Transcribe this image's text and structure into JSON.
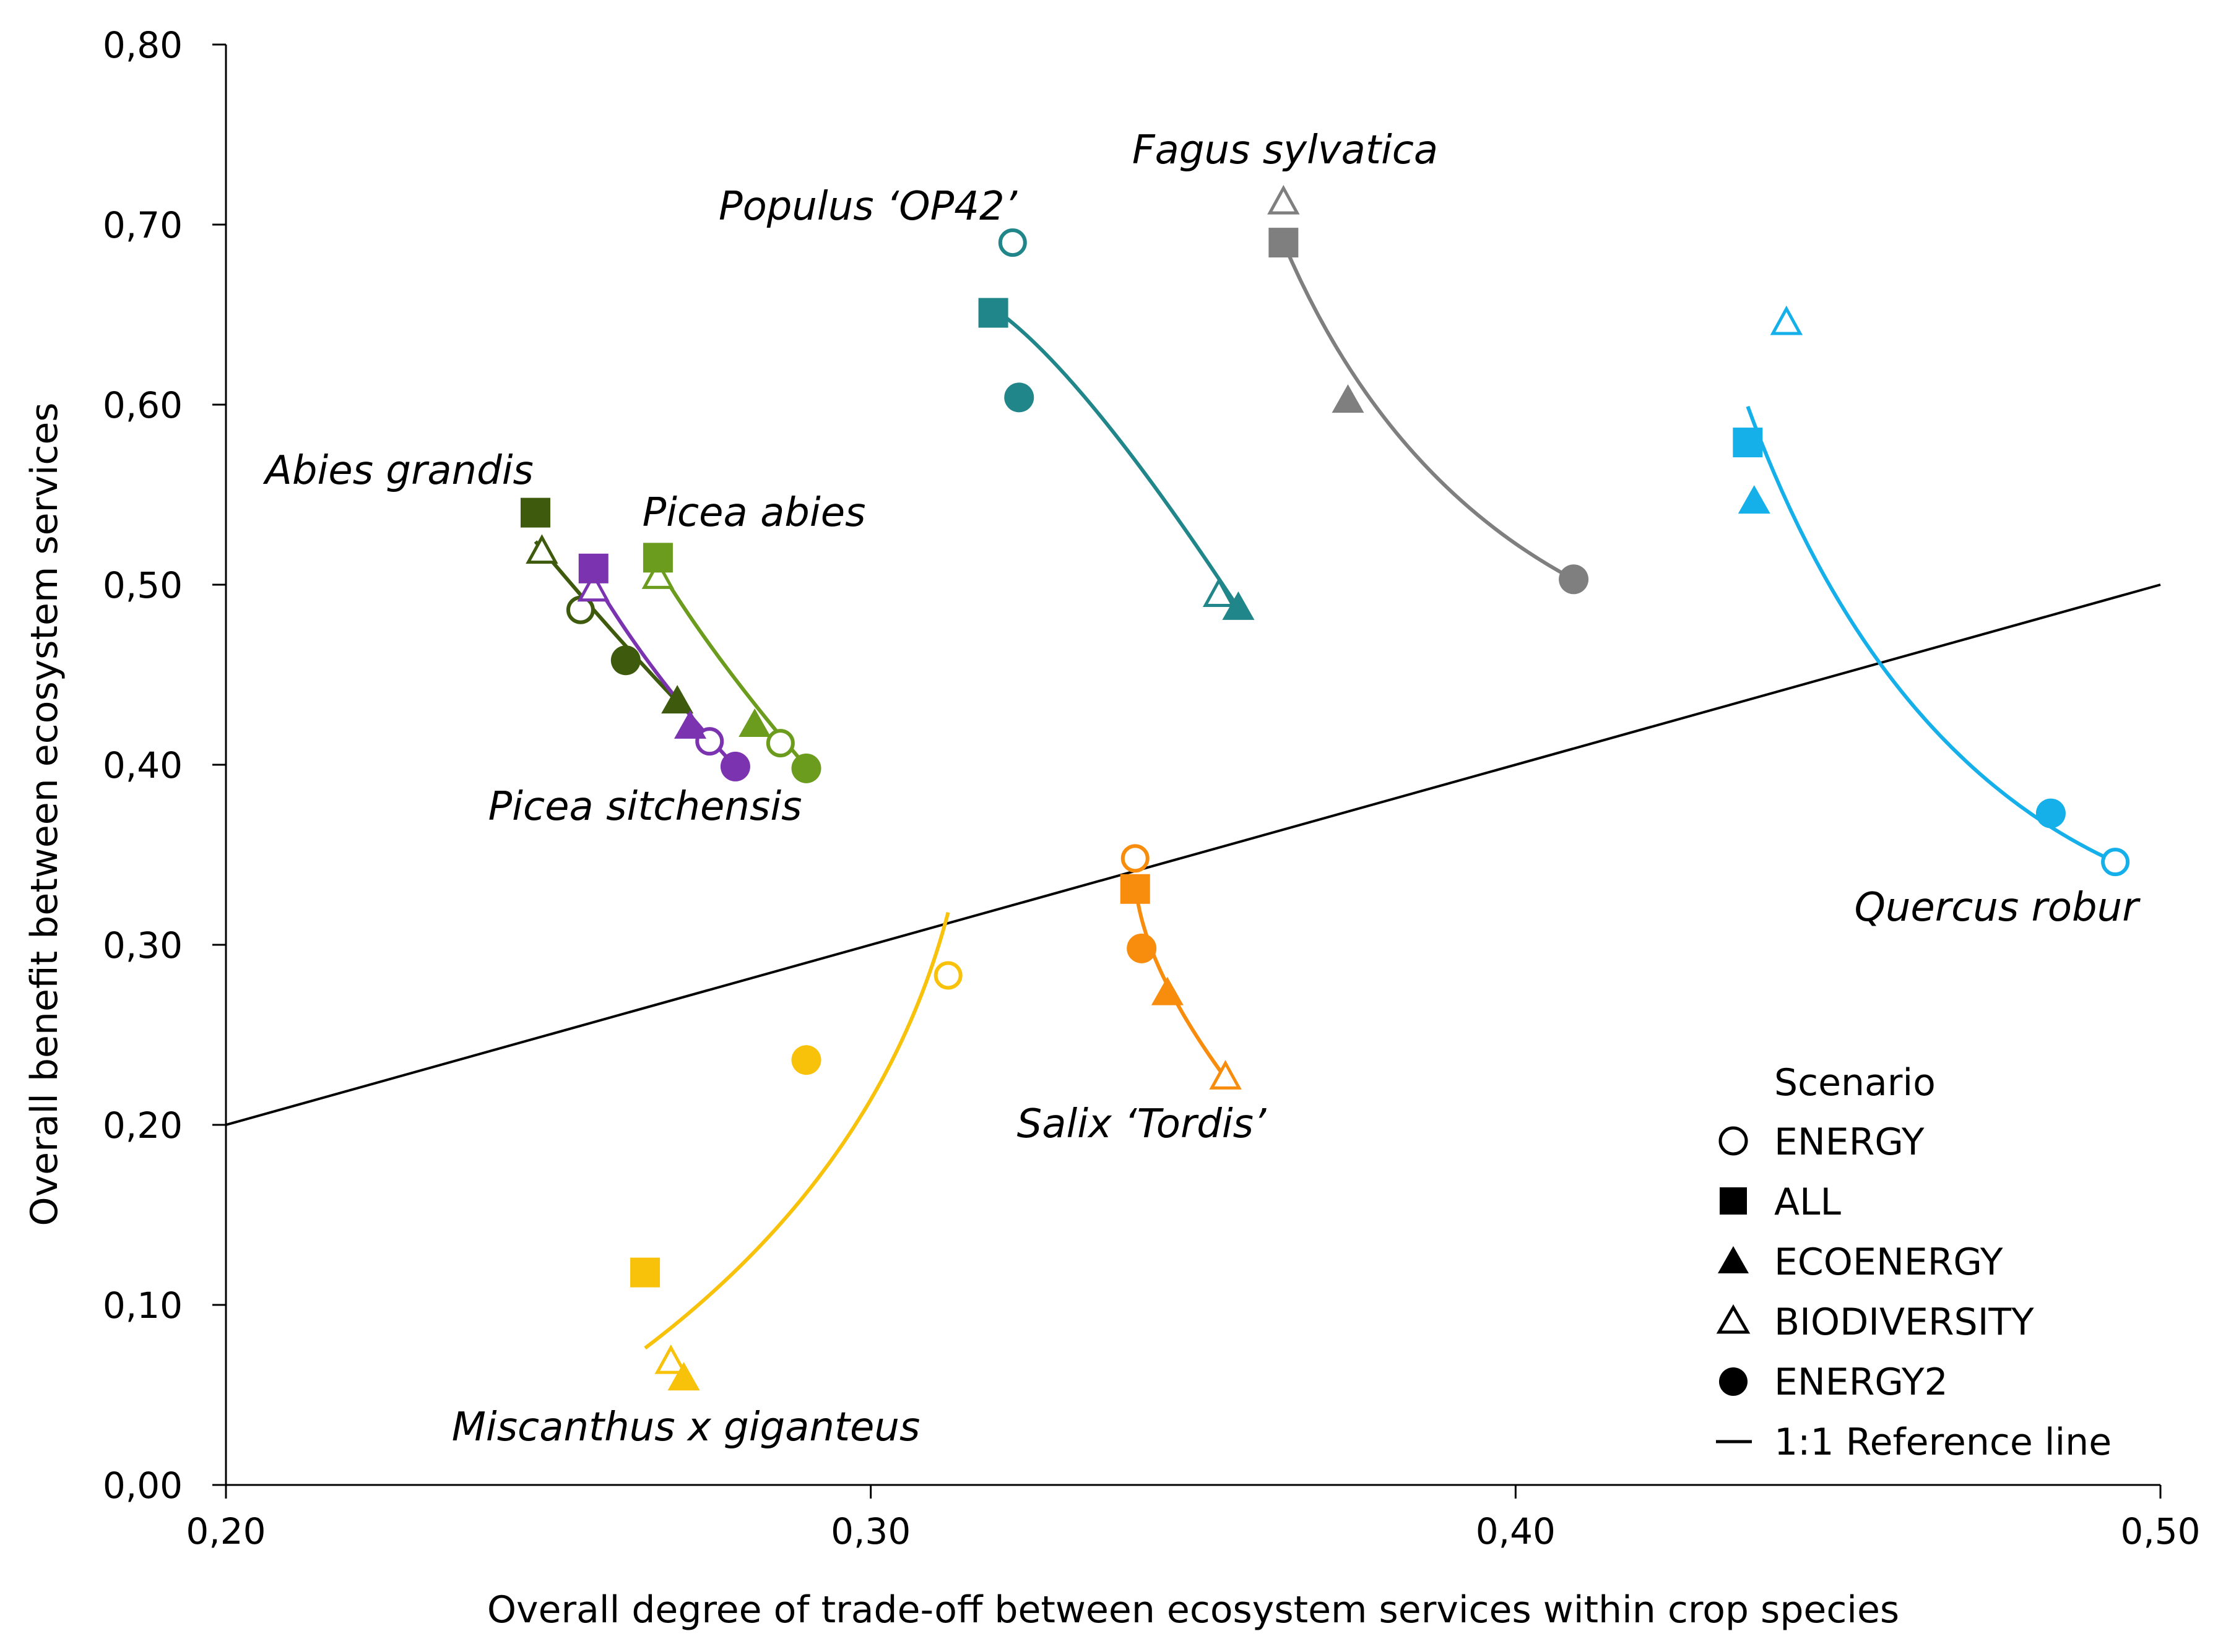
{
  "chart_data": {
    "type": "scatter",
    "title": "",
    "xlabel": "Overall degree of trade-off between ecosystem services within crop species",
    "ylabel": "Overall benefit between ecosystem services",
    "xlim": [
      0.2,
      0.5
    ],
    "ylim": [
      0.0,
      0.8
    ],
    "x_ticks": [
      0.2,
      0.3,
      0.4,
      0.5
    ],
    "x_tick_labels": [
      "0,20",
      "0,30",
      "0,40",
      "0,50"
    ],
    "y_ticks": [
      0.0,
      0.1,
      0.2,
      0.3,
      0.4,
      0.5,
      0.6,
      0.7,
      0.8
    ],
    "y_tick_labels": [
      "0,00",
      "0,10",
      "0,20",
      "0,30",
      "0,40",
      "0,50",
      "0,60",
      "0,70",
      "0,80"
    ],
    "grid": false,
    "reference_line": {
      "label": "1:1 Reference line",
      "from": [
        0.2,
        0.2
      ],
      "to": [
        0.5,
        0.5
      ]
    },
    "legend": {
      "title": "Scenario",
      "position": "bottom-right",
      "entries": [
        {
          "label": "ENERGY",
          "marker": "circle-open"
        },
        {
          "label": "ALL",
          "marker": "square"
        },
        {
          "label": "ECOENERGY",
          "marker": "triangle"
        },
        {
          "label": "BIODIVERSITY",
          "marker": "triangle-open"
        },
        {
          "label": "ENERGY2",
          "marker": "circle"
        },
        {
          "label": "1:1 Reference line",
          "marker": "line"
        }
      ]
    },
    "species": [
      {
        "name": "Populus ‘OP42’",
        "color": "#21868a",
        "points": {
          "ENERGY": [
            0.322,
            0.69
          ],
          "ALL": [
            0.319,
            0.651
          ],
          "ECOENERGY": [
            0.357,
            0.487
          ],
          "BIODIVERSITY": [
            0.354,
            0.494
          ],
          "ENERGY2": [
            0.323,
            0.604
          ]
        },
        "trend": [
          [
            0.32,
            0.651
          ],
          [
            0.336,
            0.592
          ],
          [
            0.357,
            0.487
          ]
        ]
      },
      {
        "name": "Fagus sylvatica",
        "color": "#7f7f7f",
        "points": {
          "ENERGY": null,
          "ALL": [
            0.364,
            0.69
          ],
          "ECOENERGY": [
            0.374,
            0.602
          ],
          "BIODIVERSITY": [
            0.364,
            0.712
          ],
          "ENERGY2": [
            0.409,
            0.503
          ]
        },
        "trend": [
          [
            0.364,
            0.69
          ],
          [
            0.383,
            0.578
          ],
          [
            0.409,
            0.503
          ]
        ]
      },
      {
        "name": "Quercus robur",
        "color": "#15b0ea",
        "points": {
          "ENERGY": [
            0.493,
            0.346
          ],
          "ALL": [
            0.436,
            0.579
          ],
          "ECOENERGY": [
            0.437,
            0.546
          ],
          "BIODIVERSITY": [
            0.442,
            0.645
          ],
          "ENERGY2": [
            0.483,
            0.373
          ]
        },
        "trend": [
          [
            0.436,
            0.599
          ],
          [
            0.46,
            0.44
          ],
          [
            0.493,
            0.346
          ]
        ]
      },
      {
        "name": "Abies grandis",
        "color": "#3d5a0d",
        "points": {
          "ENERGY": [
            0.255,
            0.486
          ],
          "ALL": [
            0.248,
            0.54
          ],
          "ECOENERGY": [
            0.27,
            0.435
          ],
          "BIODIVERSITY": [
            0.249,
            0.518
          ],
          "ENERGY2": [
            0.262,
            0.458
          ]
        },
        "trend": [
          [
            0.248,
            0.524
          ],
          [
            0.259,
            0.478
          ],
          [
            0.27,
            0.435
          ]
        ]
      },
      {
        "name": "Picea sitchensis",
        "color": "#7b33b0",
        "points": {
          "ENERGY": [
            0.275,
            0.413
          ],
          "ALL": [
            0.257,
            0.509
          ],
          "ECOENERGY": [
            0.272,
            0.421
          ],
          "BIODIVERSITY": [
            0.257,
            0.497
          ],
          "ENERGY2": [
            0.279,
            0.399
          ]
        },
        "trend": [
          [
            0.257,
            0.503
          ],
          [
            0.267,
            0.45
          ],
          [
            0.279,
            0.399
          ]
        ]
      },
      {
        "name": "Picea abies",
        "color": "#6b9c1e",
        "points": {
          "ENERGY": [
            0.286,
            0.412
          ],
          "ALL": [
            0.267,
            0.515
          ],
          "ECOENERGY": [
            0.282,
            0.422
          ],
          "BIODIVERSITY": [
            0.267,
            0.504
          ],
          "ENERGY2": [
            0.29,
            0.398
          ]
        },
        "trend": [
          [
            0.267,
            0.51
          ],
          [
            0.277,
            0.457
          ],
          [
            0.29,
            0.399
          ]
        ]
      },
      {
        "name": "Salix ‘Tordis’",
        "color": "#f88c0c",
        "points": {
          "ENERGY": [
            0.341,
            0.348
          ],
          "ALL": [
            0.341,
            0.331
          ],
          "ECOENERGY": [
            0.346,
            0.273
          ],
          "BIODIVERSITY": [
            0.355,
            0.226
          ],
          "ENERGY2": [
            0.342,
            0.298
          ]
        },
        "trend": [
          [
            0.341,
            0.335
          ],
          [
            0.345,
            0.285
          ],
          [
            0.355,
            0.226
          ]
        ]
      },
      {
        "name": "Miscanthus x giganteus",
        "color": "#f8c20a",
        "points": {
          "ENERGY": [
            0.312,
            0.283
          ],
          "ALL": [
            0.265,
            0.118
          ],
          "ECOENERGY": [
            0.271,
            0.059
          ],
          "BIODIVERSITY": [
            0.269,
            0.068
          ],
          "ENERGY2": [
            0.29,
            0.236
          ]
        },
        "trend": [
          [
            0.265,
            0.076
          ],
          [
            0.295,
            0.186
          ],
          [
            0.312,
            0.318
          ]
        ]
      }
    ]
  }
}
